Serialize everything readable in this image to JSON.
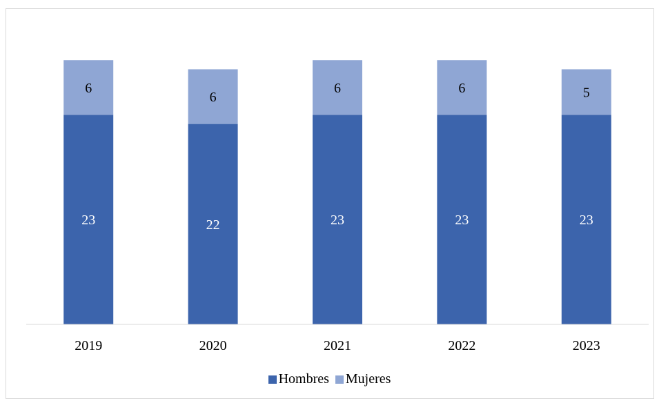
{
  "chart_data": {
    "type": "bar",
    "stacked": true,
    "categories": [
      "2019",
      "2020",
      "2021",
      "2022",
      "2023"
    ],
    "series": [
      {
        "name": "Hombres",
        "values": [
          23,
          22,
          23,
          23,
          23
        ],
        "color": "#3c64ac",
        "label_color": "#ffffff"
      },
      {
        "name": "Mujeres",
        "values": [
          6,
          6,
          6,
          6,
          5
        ],
        "color": "#8fa6d4",
        "label_color": "#000000"
      }
    ],
    "title": "",
    "xlabel": "",
    "ylabel": "",
    "ylim": [
      0,
      30
    ],
    "grid": false,
    "legend": "bottom-center"
  }
}
